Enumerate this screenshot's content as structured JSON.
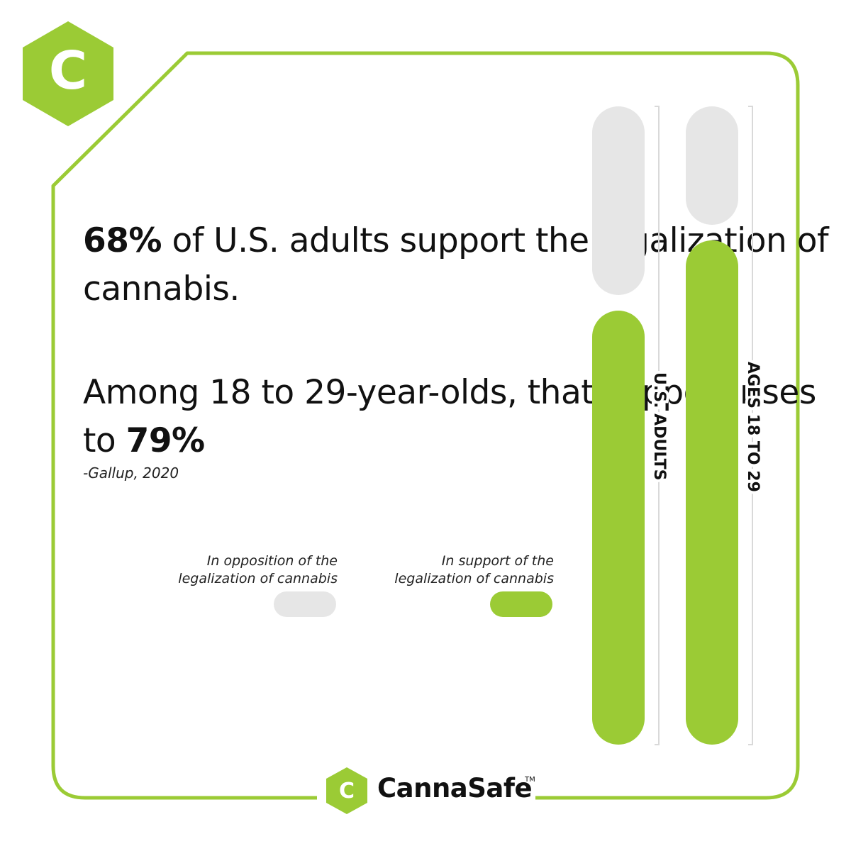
{
  "colors": {
    "accent": "#9bcb35",
    "opposition": "#e6e6e6",
    "text": "#111111",
    "white": "#ffffff",
    "bracket": "#d9d9d9"
  },
  "logo": {
    "letter": "C"
  },
  "headline1": {
    "stat": "68%",
    "text": " of U.S. adults support the legalization of cannabis."
  },
  "headline2": {
    "text": "Among 18 to 29-year-olds, that support rises to ",
    "stat": "79%"
  },
  "source": "-Gallup, 2020",
  "legend": {
    "opposition": {
      "line1": "In opposition of the",
      "line2": "legalization of cannabis"
    },
    "support": {
      "line1": "In support of the",
      "line2": "legalization of cannabis"
    }
  },
  "chart_data": {
    "type": "bar",
    "orientation": "vertical-stacked",
    "categories": [
      "U.S. ADULTS",
      "AGES 18 TO 29"
    ],
    "series": [
      {
        "name": "In support of the legalization of cannabis",
        "values": [
          68,
          79
        ]
      },
      {
        "name": "In opposition of the legalization of cannabis",
        "values": [
          32,
          21
        ]
      }
    ],
    "ylim": [
      0,
      100
    ],
    "title": "",
    "xlabel": "",
    "ylabel": ""
  },
  "brand": {
    "name": "CannaSafe",
    "tm": "TM"
  }
}
